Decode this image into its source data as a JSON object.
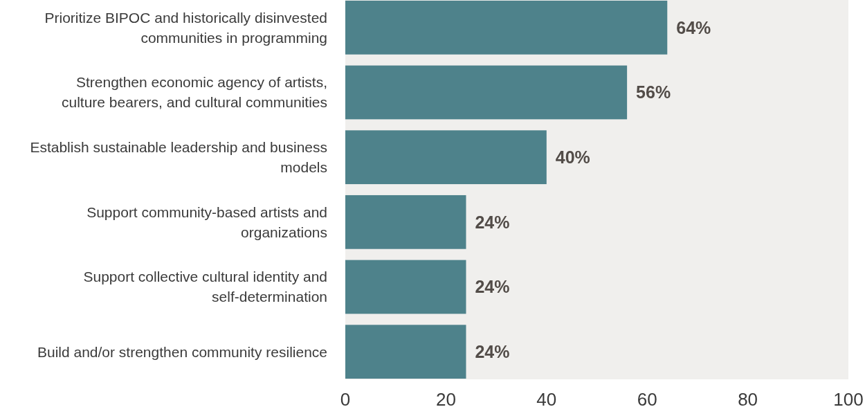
{
  "chart_data": {
    "type": "bar",
    "orientation": "horizontal",
    "categories": [
      "Prioritize BIPOC and historically disinvested communities in programming",
      "Strengthen economic agency of artists, culture bearers, and cultural communities",
      "Establish sustainable leadership and business models",
      "Support community-based artists and organizations",
      "Support collective cultural identity and self-determination",
      "Build and/or strengthen community resilience"
    ],
    "values": [
      64,
      56,
      40,
      24,
      24,
      24
    ],
    "value_labels": [
      "64%",
      "56%",
      "40%",
      "24%",
      "24%",
      "24%"
    ],
    "color": "#4e828b",
    "xlim": [
      0,
      100
    ],
    "xticks": [
      0,
      20,
      40,
      60,
      80,
      100
    ]
  }
}
